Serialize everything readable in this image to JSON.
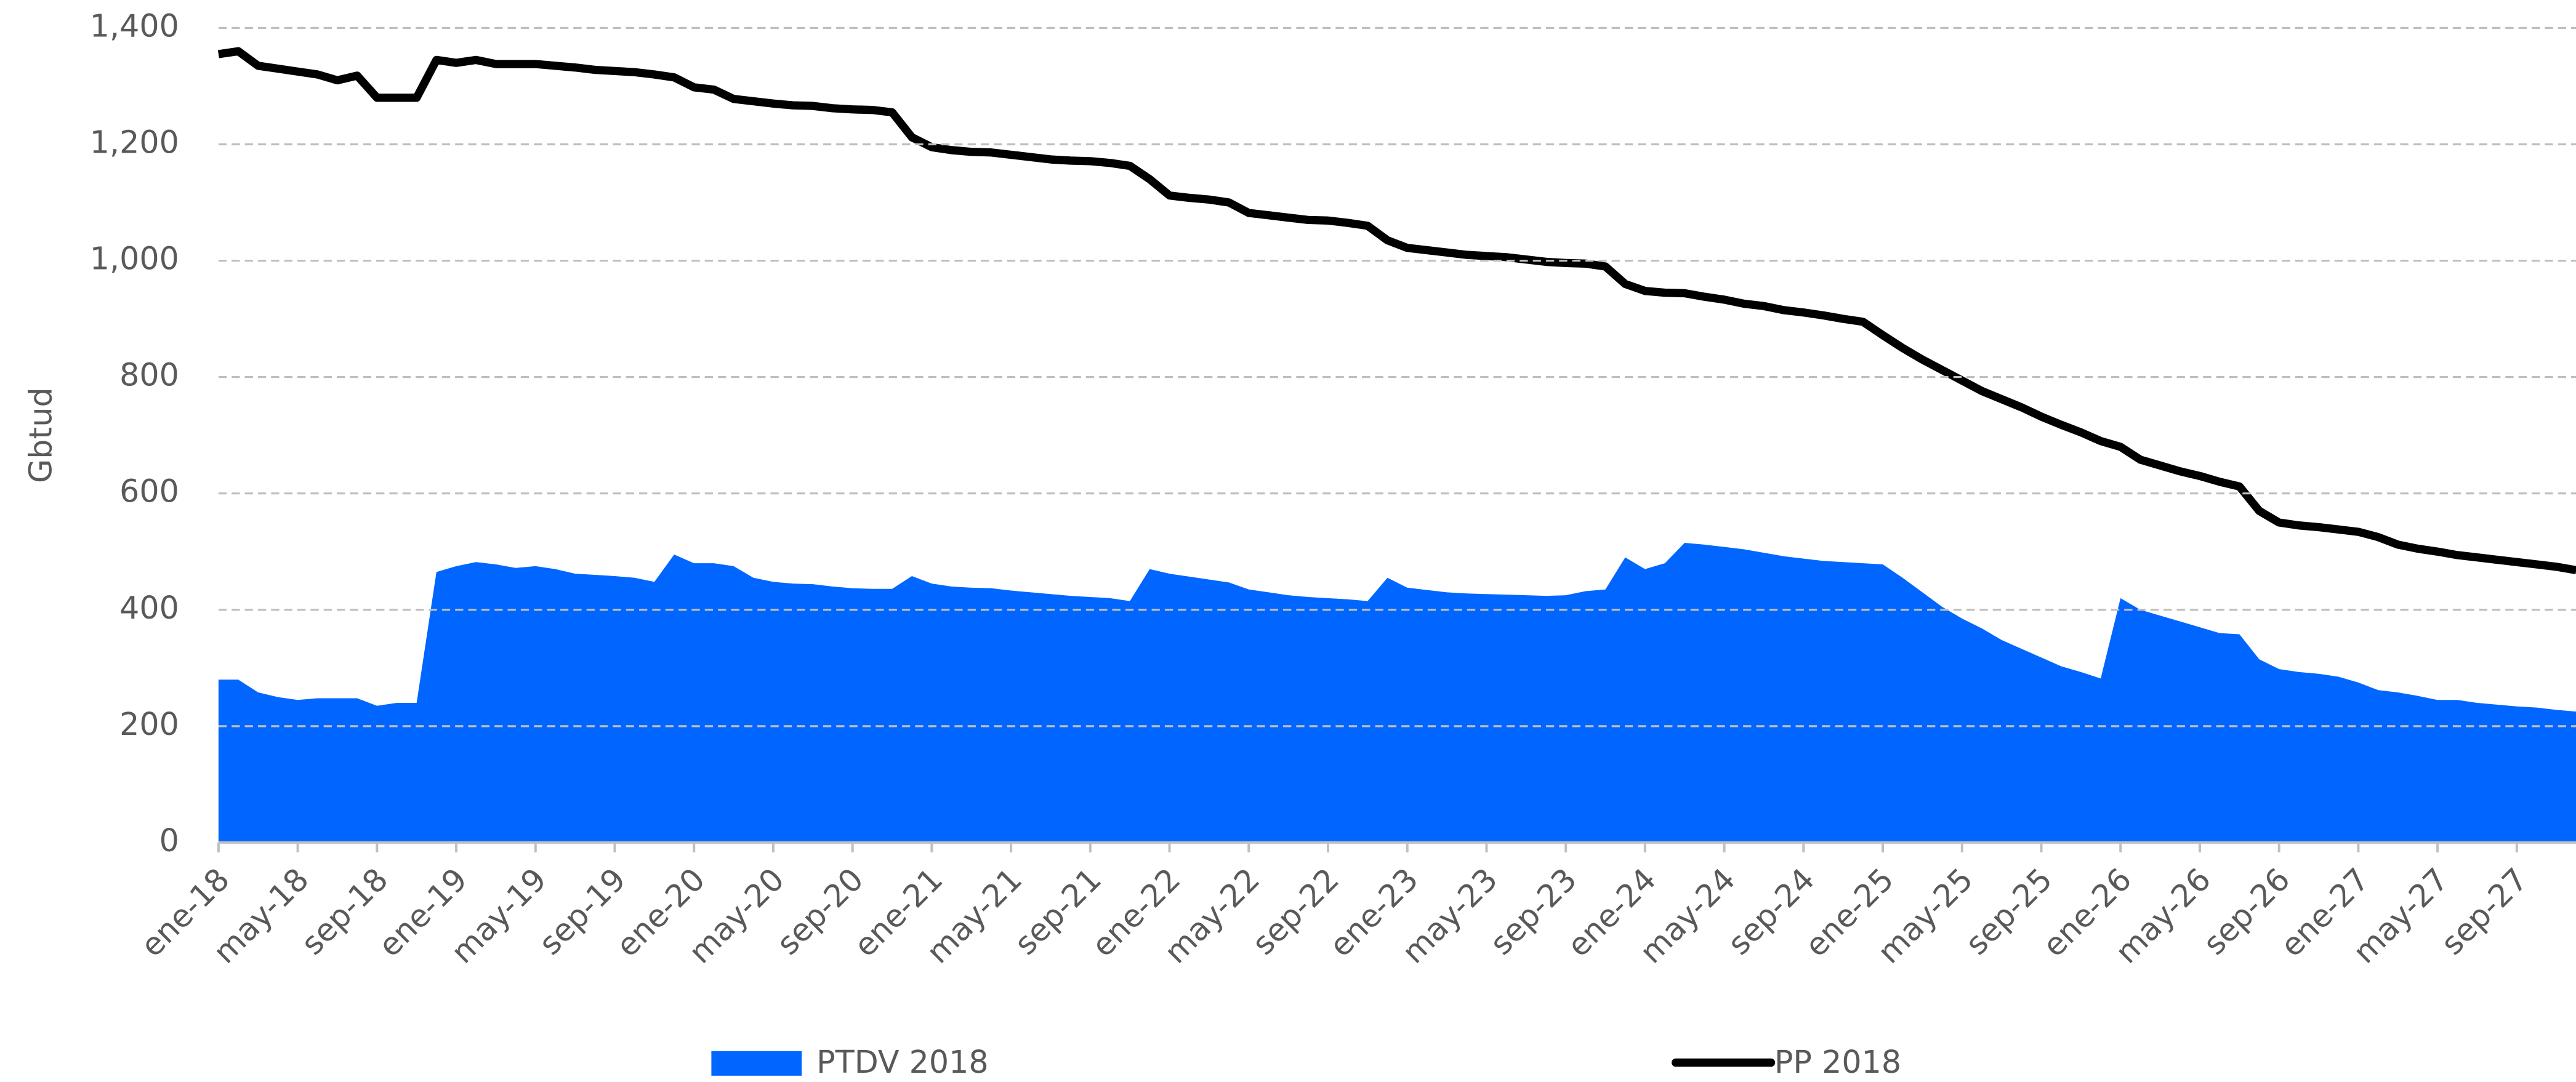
{
  "chart_data": {
    "type": "area_line",
    "y_label": "Gbtud",
    "categories": [
      "ene-18",
      null,
      null,
      null,
      "may-18",
      null,
      null,
      null,
      "sep-18",
      null,
      null,
      null,
      "ene-19",
      null,
      null,
      null,
      "may-19",
      null,
      null,
      null,
      "sep-19",
      null,
      null,
      null,
      "ene-20",
      null,
      null,
      null,
      "may-20",
      null,
      null,
      null,
      "sep-20",
      null,
      null,
      null,
      "ene-21",
      null,
      null,
      null,
      "may-21",
      null,
      null,
      null,
      "sep-21",
      null,
      null,
      null,
      "ene-22",
      null,
      null,
      null,
      "may-22",
      null,
      null,
      null,
      "sep-22",
      null,
      null,
      null,
      "ene-23",
      null,
      null,
      null,
      "may-23",
      null,
      null,
      null,
      "sep-23",
      null,
      null,
      null,
      "ene-24",
      null,
      null,
      null,
      "may-24",
      null,
      null,
      null,
      "sep-24",
      null,
      null,
      null,
      "ene-25",
      null,
      null,
      null,
      "may-25",
      null,
      null,
      null,
      "sep-25",
      null,
      null,
      null,
      "ene-26",
      null,
      null,
      null,
      "may-26",
      null,
      null,
      null,
      "sep-26",
      null,
      null,
      null,
      "ene-27",
      null,
      null,
      null,
      "may-27",
      null,
      null,
      null,
      "sep-27",
      null,
      null,
      null
    ],
    "series": [
      {
        "name": "PTDV 2018",
        "color": "#0066ff",
        "kind": "area",
        "values": [
          280,
          280,
          258,
          250,
          245,
          248,
          248,
          248,
          235,
          240,
          240,
          465,
          475,
          482,
          478,
          472,
          475,
          470,
          462,
          460,
          458,
          455,
          448,
          495,
          480,
          480,
          475,
          455,
          448,
          445,
          444,
          440,
          437,
          436,
          436,
          458,
          445,
          440,
          438,
          437,
          433,
          430,
          427,
          424,
          422,
          420,
          415,
          470,
          462,
          457,
          452,
          447,
          435,
          430,
          425,
          422,
          420,
          418,
          415,
          455,
          438,
          434,
          430,
          428,
          427,
          426,
          425,
          424,
          425,
          432,
          435,
          490,
          470,
          480,
          515,
          512,
          508,
          504,
          498,
          492,
          488,
          484,
          482,
          480,
          478,
          455,
          430,
          405,
          385,
          368,
          348,
          333,
          318,
          303,
          293,
          282,
          420,
          400,
          390,
          380,
          370,
          360,
          358,
          315,
          298,
          293,
          290,
          285,
          275,
          262,
          258,
          252,
          245,
          245,
          240,
          237,
          234,
          232,
          228,
          225
        ]
      },
      {
        "name": "PP 2018",
        "color": "#000000",
        "kind": "line",
        "values": [
          1355,
          1360,
          1335,
          1330,
          1325,
          1320,
          1310,
          1318,
          1280,
          1280,
          1280,
          1345,
          1340,
          1345,
          1338,
          1338,
          1338,
          1335,
          1332,
          1328,
          1326,
          1324,
          1320,
          1315,
          1298,
          1294,
          1278,
          1274,
          1270,
          1267,
          1266,
          1262,
          1260,
          1259,
          1255,
          1212,
          1195,
          1190,
          1187,
          1186,
          1182,
          1178,
          1174,
          1172,
          1171,
          1168,
          1163,
          1140,
          1112,
          1108,
          1105,
          1100,
          1082,
          1078,
          1074,
          1070,
          1069,
          1065,
          1060,
          1035,
          1022,
          1018,
          1014,
          1010,
          1008,
          1006,
          1002,
          998,
          996,
          995,
          990,
          960,
          948,
          945,
          944,
          938,
          933,
          926,
          922,
          915,
          911,
          906,
          900,
          895,
          872,
          850,
          830,
          812,
          794,
          776,
          762,
          748,
          732,
          718,
          705,
          690,
          680,
          658,
          648,
          638,
          630,
          620,
          612,
          570,
          550,
          545,
          542,
          538,
          534,
          525,
          512,
          505,
          500,
          494,
          490,
          486,
          482,
          478,
          474,
          468
        ]
      }
    ],
    "ylim": [
      0,
      1400
    ],
    "yticks": [
      0,
      200,
      400,
      600,
      800,
      {
        "value": 1000,
        "label": "1,000"
      },
      {
        "value": 1200,
        "label": "1,200"
      },
      {
        "value": 1400,
        "label": "1,400"
      }
    ],
    "grid": true,
    "legend": "bottom"
  }
}
